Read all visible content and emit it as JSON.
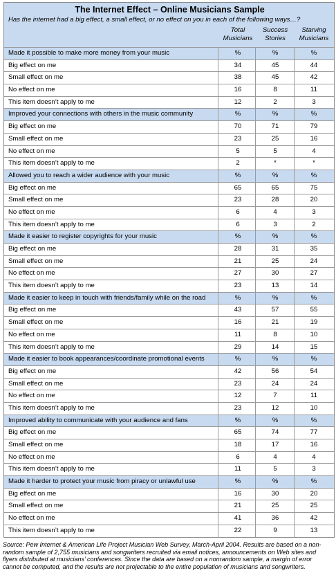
{
  "table": {
    "title": "The Internet Effect – Online Musicians Sample",
    "subtitle": "Has the internet had a big effect, a small effect, or no effect on you in each of the following ways…?",
    "columns": [
      {
        "line1": "Total",
        "line2": "Musicians"
      },
      {
        "line1": "Success",
        "line2": "Stories"
      },
      {
        "line1": "Starving",
        "line2": "Musicians"
      }
    ],
    "sections": [
      {
        "heading": "Made it possible to make more money from your music",
        "unit": [
          "%",
          "%",
          "%"
        ],
        "rows": [
          {
            "label": "Big effect on me",
            "values": [
              "34",
              "45",
              "44"
            ]
          },
          {
            "label": "Small effect on me",
            "values": [
              "38",
              "45",
              "42"
            ]
          },
          {
            "label": "No effect on me",
            "values": [
              "16",
              "8",
              "11"
            ]
          },
          {
            "label": "This item doesn’t apply to me",
            "values": [
              "12",
              "2",
              "3"
            ]
          }
        ]
      },
      {
        "heading": "Improved your connections with others in the music community",
        "unit": [
          "%",
          "%",
          "%"
        ],
        "rows": [
          {
            "label": "Big effect on me",
            "values": [
              "70",
              "71",
              "79"
            ]
          },
          {
            "label": "Small effect on me",
            "values": [
              "23",
              "25",
              "16"
            ]
          },
          {
            "label": "No effect on me",
            "values": [
              "5",
              "5",
              "4"
            ]
          },
          {
            "label": "This item doesn’t apply to me",
            "values": [
              "2",
              "*",
              "*"
            ]
          }
        ]
      },
      {
        "heading": "Allowed you to reach a wider audience with your music",
        "unit": [
          "%",
          "%",
          "%"
        ],
        "rows": [
          {
            "label": "Big effect on me",
            "values": [
              "65",
              "65",
              "75"
            ]
          },
          {
            "label": "Small effect on me",
            "values": [
              "23",
              "28",
              "20"
            ]
          },
          {
            "label": "No effect on me",
            "values": [
              "6",
              "4",
              "3"
            ]
          },
          {
            "label": "This item doesn’t apply to me",
            "values": [
              "6",
              "3",
              "2"
            ]
          }
        ]
      },
      {
        "heading": "Made it easier to register copyrights for your music",
        "unit": [
          "%",
          "%",
          "%"
        ],
        "rows": [
          {
            "label": "Big effect on me",
            "values": [
              "28",
              "31",
              "35"
            ]
          },
          {
            "label": "Small effect on me",
            "values": [
              "21",
              "25",
              "24"
            ]
          },
          {
            "label": "No effect on me",
            "values": [
              "27",
              "30",
              "27"
            ]
          },
          {
            "label": "This item doesn’t apply to me",
            "values": [
              "23",
              "13",
              "14"
            ]
          }
        ]
      },
      {
        "heading": "Made it easier to keep in touch with friends/family while on the road",
        "unit": [
          "%",
          "%",
          "%"
        ],
        "rows": [
          {
            "label": "Big effect on me",
            "values": [
              "43",
              "57",
              "55"
            ]
          },
          {
            "label": "Small effect on me",
            "values": [
              "16",
              "21",
              "19"
            ]
          },
          {
            "label": "No effect on me",
            "values": [
              "11",
              "8",
              "10"
            ]
          },
          {
            "label": "This item doesn’t apply to me",
            "values": [
              "29",
              "14",
              "15"
            ]
          }
        ]
      },
      {
        "heading": "Made it easier to book appearances/coordinate promotional events",
        "unit": [
          "%",
          "%",
          "%"
        ],
        "rows": [
          {
            "label": "Big effect on me",
            "values": [
              "42",
              "56",
              "54"
            ]
          },
          {
            "label": "Small effect on me",
            "values": [
              "23",
              "24",
              "24"
            ]
          },
          {
            "label": "No effect on me",
            "values": [
              "12",
              "7",
              "11"
            ]
          },
          {
            "label": "This item doesn’t apply to me",
            "values": [
              "23",
              "12",
              "10"
            ]
          }
        ]
      },
      {
        "heading": "Improved ability to communicate with your audience and fans",
        "unit": [
          "%",
          "%",
          "%"
        ],
        "rows": [
          {
            "label": "Big effect on me",
            "values": [
              "65",
              "74",
              "77"
            ]
          },
          {
            "label": "Small effect on me",
            "values": [
              "18",
              "17",
              "16"
            ]
          },
          {
            "label": "No effect on me",
            "values": [
              "6",
              "4",
              "4"
            ]
          },
          {
            "label": "This item doesn’t apply to me",
            "values": [
              "11",
              "5",
              "3"
            ]
          }
        ]
      },
      {
        "heading": "Made it harder to protect your music from piracy or unlawful use",
        "unit": [
          "%",
          "%",
          "%"
        ],
        "rows": [
          {
            "label": "Big effect on me",
            "values": [
              "16",
              "30",
              "20"
            ]
          },
          {
            "label": "Small effect on me",
            "values": [
              "21",
              "25",
              "25"
            ]
          },
          {
            "label": "No effect on me",
            "values": [
              "41",
              "36",
              "42"
            ]
          },
          {
            "label": "This item doesn’t apply to me",
            "values": [
              "22",
              "9",
              "13"
            ]
          }
        ]
      }
    ],
    "source": "Source: Pew Internet & American Life Project Musician Web Survey, March-April 2004. Results are based on a non-random sample of 2,755 musicians and songwriters recruited via email notices, announcements on Web sites and flyers distributed at musicians’ conferences. Since the data are based on a nonrandom sample, a margin of error cannot be computed, and the results are not projectable to the entire population of musicians and songwriters."
  },
  "colors": {
    "header_bg": "#c8daf0",
    "section_bg": "#c8daf0",
    "rule": "#9a9a9a"
  }
}
